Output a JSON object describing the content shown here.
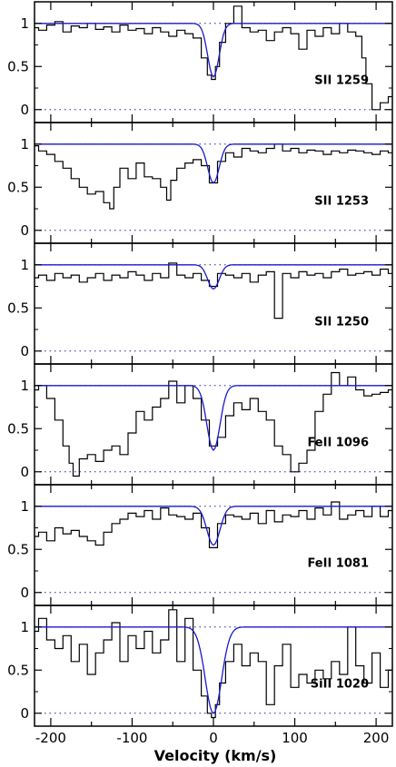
{
  "chart_data": {
    "type": "line",
    "xlabel": "Velocity (km/s)",
    "xlim": [
      -220,
      220
    ],
    "ylim": [
      -0.15,
      1.25
    ],
    "x_ticks": [
      -200,
      -100,
      0,
      100,
      200
    ],
    "x_tick_labels": [
      "-200",
      "-100",
      "0",
      "100",
      "200"
    ],
    "y_ticks": [
      0,
      0.5,
      1
    ],
    "y_tick_labels": [
      "0",
      "0.5",
      "1"
    ],
    "reference_lines": [
      0,
      1
    ],
    "colors": {
      "data": "#000000",
      "model": "#1a1acc",
      "reference": "#2222aa"
    },
    "panels": [
      {
        "label": "SII  1259",
        "data": {
          "x": [
            -220,
            -210,
            -200,
            -190,
            -180,
            -170,
            -160,
            -150,
            -140,
            -130,
            -120,
            -110,
            -100,
            -90,
            -80,
            -70,
            -60,
            -50,
            -40,
            -30,
            -20,
            -10,
            -5,
            0,
            5,
            10,
            20,
            30,
            40,
            50,
            60,
            70,
            80,
            90,
            100,
            110,
            120,
            130,
            140,
            150,
            160,
            170,
            180,
            185,
            190,
            200,
            210,
            220
          ],
          "y": [
            0.95,
            0.92,
            0.98,
            1.02,
            0.9,
            0.97,
            0.95,
            1.0,
            0.93,
            0.96,
            0.9,
            0.98,
            0.92,
            0.94,
            0.88,
            0.95,
            0.9,
            0.85,
            0.92,
            0.88,
            0.83,
            0.6,
            0.4,
            0.35,
            0.5,
            0.78,
            1.0,
            1.2,
            0.95,
            0.9,
            0.92,
            0.8,
            0.9,
            0.95,
            0.88,
            0.7,
            0.92,
            0.85,
            0.95,
            0.88,
            1.0,
            0.9,
            0.85,
            0.6,
            0.3,
            0.0,
            0.08,
            0.15
          ]
        },
        "model": {
          "center": 0,
          "depth": 0.62,
          "sigma": 7
        }
      },
      {
        "label": "SII  1253",
        "data": {
          "x": [
            -220,
            -210,
            -200,
            -190,
            -180,
            -170,
            -160,
            -150,
            -140,
            -130,
            -125,
            -120,
            -110,
            -100,
            -90,
            -80,
            -70,
            -60,
            -55,
            -50,
            -40,
            -30,
            -20,
            -10,
            0,
            10,
            20,
            30,
            40,
            50,
            60,
            70,
            80,
            90,
            100,
            110,
            120,
            130,
            140,
            150,
            160,
            170,
            180,
            190,
            200,
            210,
            220
          ],
          "y": [
            0.98,
            0.92,
            0.88,
            0.8,
            0.72,
            0.6,
            0.5,
            0.42,
            0.45,
            0.32,
            0.25,
            0.5,
            0.72,
            0.6,
            0.78,
            0.62,
            0.6,
            0.5,
            0.35,
            0.58,
            0.72,
            0.78,
            0.82,
            0.75,
            0.55,
            0.8,
            0.9,
            0.85,
            0.95,
            0.92,
            0.9,
            0.95,
            1.0,
            0.92,
            0.95,
            0.9,
            0.93,
            0.92,
            0.88,
            0.92,
            0.9,
            0.93,
            0.92,
            0.9,
            0.88,
            0.92,
            0.9
          ]
        },
        "model": {
          "center": 0,
          "depth": 0.45,
          "sigma": 7
        }
      },
      {
        "label": "SII  1250",
        "data": {
          "x": [
            -220,
            -210,
            -200,
            -190,
            -180,
            -170,
            -160,
            -150,
            -140,
            -130,
            -120,
            -110,
            -100,
            -90,
            -80,
            -70,
            -60,
            -50,
            -40,
            -30,
            -20,
            -10,
            0,
            10,
            20,
            30,
            40,
            50,
            60,
            70,
            80,
            90,
            100,
            110,
            120,
            130,
            140,
            150,
            160,
            170,
            180,
            190,
            200,
            210,
            220
          ],
          "y": [
            0.85,
            0.88,
            0.82,
            0.9,
            0.85,
            0.88,
            0.8,
            0.85,
            0.9,
            0.82,
            0.88,
            0.85,
            0.92,
            0.88,
            0.82,
            0.9,
            0.85,
            1.02,
            0.88,
            0.85,
            0.9,
            0.82,
            0.75,
            0.9,
            0.88,
            0.85,
            0.9,
            0.8,
            0.88,
            0.92,
            0.38,
            0.9,
            0.85,
            0.92,
            0.88,
            0.9,
            0.85,
            0.92,
            0.95,
            0.88,
            0.9,
            0.92,
            0.88,
            0.95,
            0.9
          ]
        },
        "model": {
          "center": 0,
          "depth": 0.28,
          "sigma": 7
        }
      },
      {
        "label": "FeII  1096",
        "data": {
          "x": [
            -220,
            -210,
            -200,
            -190,
            -180,
            -175,
            -170,
            -160,
            -150,
            -140,
            -130,
            -120,
            -110,
            -100,
            -90,
            -80,
            -70,
            -60,
            -50,
            -40,
            -30,
            -20,
            -10,
            0,
            10,
            20,
            30,
            40,
            50,
            60,
            70,
            80,
            90,
            100,
            110,
            120,
            130,
            140,
            150,
            160,
            170,
            180,
            190,
            200,
            210,
            220
          ],
          "y": [
            0.95,
            1.0,
            0.85,
            0.6,
            0.3,
            0.1,
            -0.05,
            0.15,
            0.2,
            0.12,
            0.25,
            0.3,
            0.2,
            0.45,
            0.7,
            0.6,
            0.75,
            0.85,
            1.05,
            0.8,
            1.0,
            0.85,
            0.6,
            0.3,
            0.4,
            0.65,
            0.8,
            0.72,
            0.85,
            0.7,
            0.6,
            0.3,
            0.2,
            0.0,
            0.1,
            0.25,
            0.7,
            0.9,
            1.15,
            1.0,
            1.1,
            0.95,
            0.88,
            0.9,
            0.92,
            0.95
          ]
        },
        "model": {
          "center": 0,
          "depth": 0.75,
          "sigma": 8
        }
      },
      {
        "label": "FeII  1081",
        "data": {
          "x": [
            -220,
            -210,
            -200,
            -190,
            -180,
            -170,
            -160,
            -150,
            -140,
            -130,
            -120,
            -110,
            -100,
            -90,
            -80,
            -70,
            -60,
            -50,
            -40,
            -30,
            -20,
            -10,
            0,
            10,
            20,
            30,
            40,
            50,
            60,
            70,
            80,
            90,
            100,
            110,
            120,
            130,
            140,
            150,
            160,
            170,
            180,
            190,
            200,
            210,
            220
          ],
          "y": [
            0.65,
            0.7,
            0.6,
            0.75,
            0.68,
            0.72,
            0.65,
            0.6,
            0.55,
            0.7,
            0.8,
            0.85,
            0.92,
            0.88,
            0.95,
            0.85,
            0.98,
            0.9,
            0.88,
            0.85,
            0.92,
            0.75,
            0.52,
            0.8,
            0.9,
            0.88,
            0.85,
            0.92,
            0.8,
            0.95,
            0.82,
            0.9,
            0.88,
            0.95,
            0.85,
            0.98,
            0.9,
            1.05,
            0.85,
            0.9,
            0.95,
            0.88,
            1.0,
            0.88,
            0.95
          ]
        },
        "model": {
          "center": 0,
          "depth": 0.45,
          "sigma": 8
        }
      },
      {
        "label": "SiII  1020",
        "data": {
          "x": [
            -220,
            -210,
            -200,
            -190,
            -180,
            -170,
            -160,
            -150,
            -140,
            -130,
            -120,
            -110,
            -100,
            -90,
            -80,
            -70,
            -60,
            -50,
            -40,
            -30,
            -20,
            -10,
            -5,
            0,
            5,
            10,
            20,
            30,
            40,
            50,
            60,
            70,
            80,
            90,
            100,
            110,
            120,
            130,
            140,
            150,
            160,
            170,
            180,
            190,
            200,
            210,
            220
          ],
          "y": [
            0.95,
            1.1,
            0.85,
            0.75,
            0.9,
            0.6,
            0.8,
            0.45,
            0.7,
            0.85,
            1.05,
            0.6,
            0.9,
            0.75,
            0.95,
            0.7,
            0.85,
            1.2,
            0.6,
            1.1,
            0.5,
            0.2,
            0.0,
            -0.05,
            0.1,
            0.35,
            0.6,
            0.8,
            0.55,
            0.7,
            0.6,
            0.1,
            0.55,
            0.8,
            0.3,
            0.45,
            0.35,
            0.5,
            0.4,
            0.6,
            0.45,
            1.0,
            0.55,
            0.35,
            0.7,
            0.3,
            0.5
          ]
        },
        "model": {
          "center": 0,
          "depth": 1.0,
          "sigma": 10
        }
      }
    ]
  }
}
